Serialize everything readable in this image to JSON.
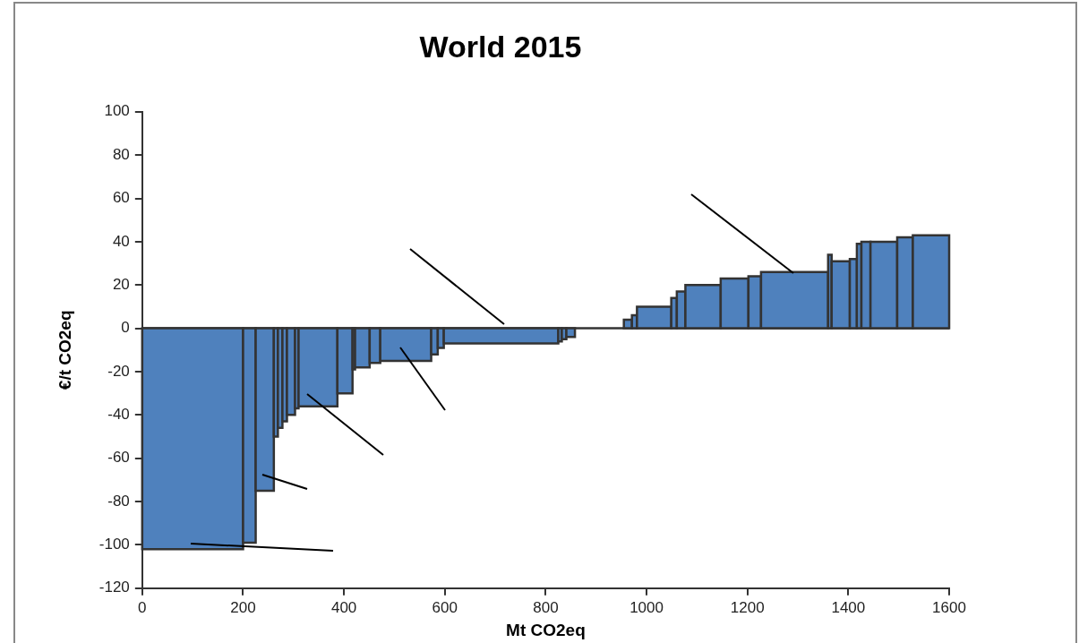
{
  "chart_data": {
    "type": "histogram",
    "title": "World 2015",
    "xlabel": "Mt CO2eq",
    "ylabel": "€/t CO2eq",
    "bins": [
      0,
      200,
      225,
      261,
      269,
      278,
      287,
      303,
      310,
      387,
      417,
      422,
      451,
      472,
      573,
      586,
      598,
      825,
      832,
      841,
      858,
      955,
      971,
      981,
      1049,
      1060,
      1077,
      1147,
      1202,
      1227,
      1360,
      1367,
      1403,
      1417,
      1426,
      1444,
      1497,
      1528,
      1600
    ],
    "values": [
      -102,
      -99,
      -75,
      -50,
      -46,
      -43,
      -40,
      -37,
      -36,
      -30,
      -19,
      -18,
      -16,
      -15,
      -12,
      -9,
      -7,
      -6,
      -5,
      -4,
      null,
      4,
      6,
      10,
      14,
      17,
      20,
      23,
      24,
      26,
      34,
      31,
      32,
      39,
      40,
      40,
      42,
      43
    ],
    "color": "#4f81bd",
    "xlim": [
      0,
      1600
    ],
    "xticks": [
      0,
      200,
      400,
      600,
      800,
      1000,
      1200,
      1400,
      1600
    ],
    "ylim": [
      -120,
      100
    ],
    "yticks": [
      -120,
      -100,
      -80,
      -60,
      -40,
      -20,
      0,
      20,
      40,
      60,
      80,
      100
    ],
    "ref_lines": [
      {
        "axis": "y",
        "value": 0,
        "color": "#333333"
      }
    ],
    "grid": false,
    "legend": false
  }
}
